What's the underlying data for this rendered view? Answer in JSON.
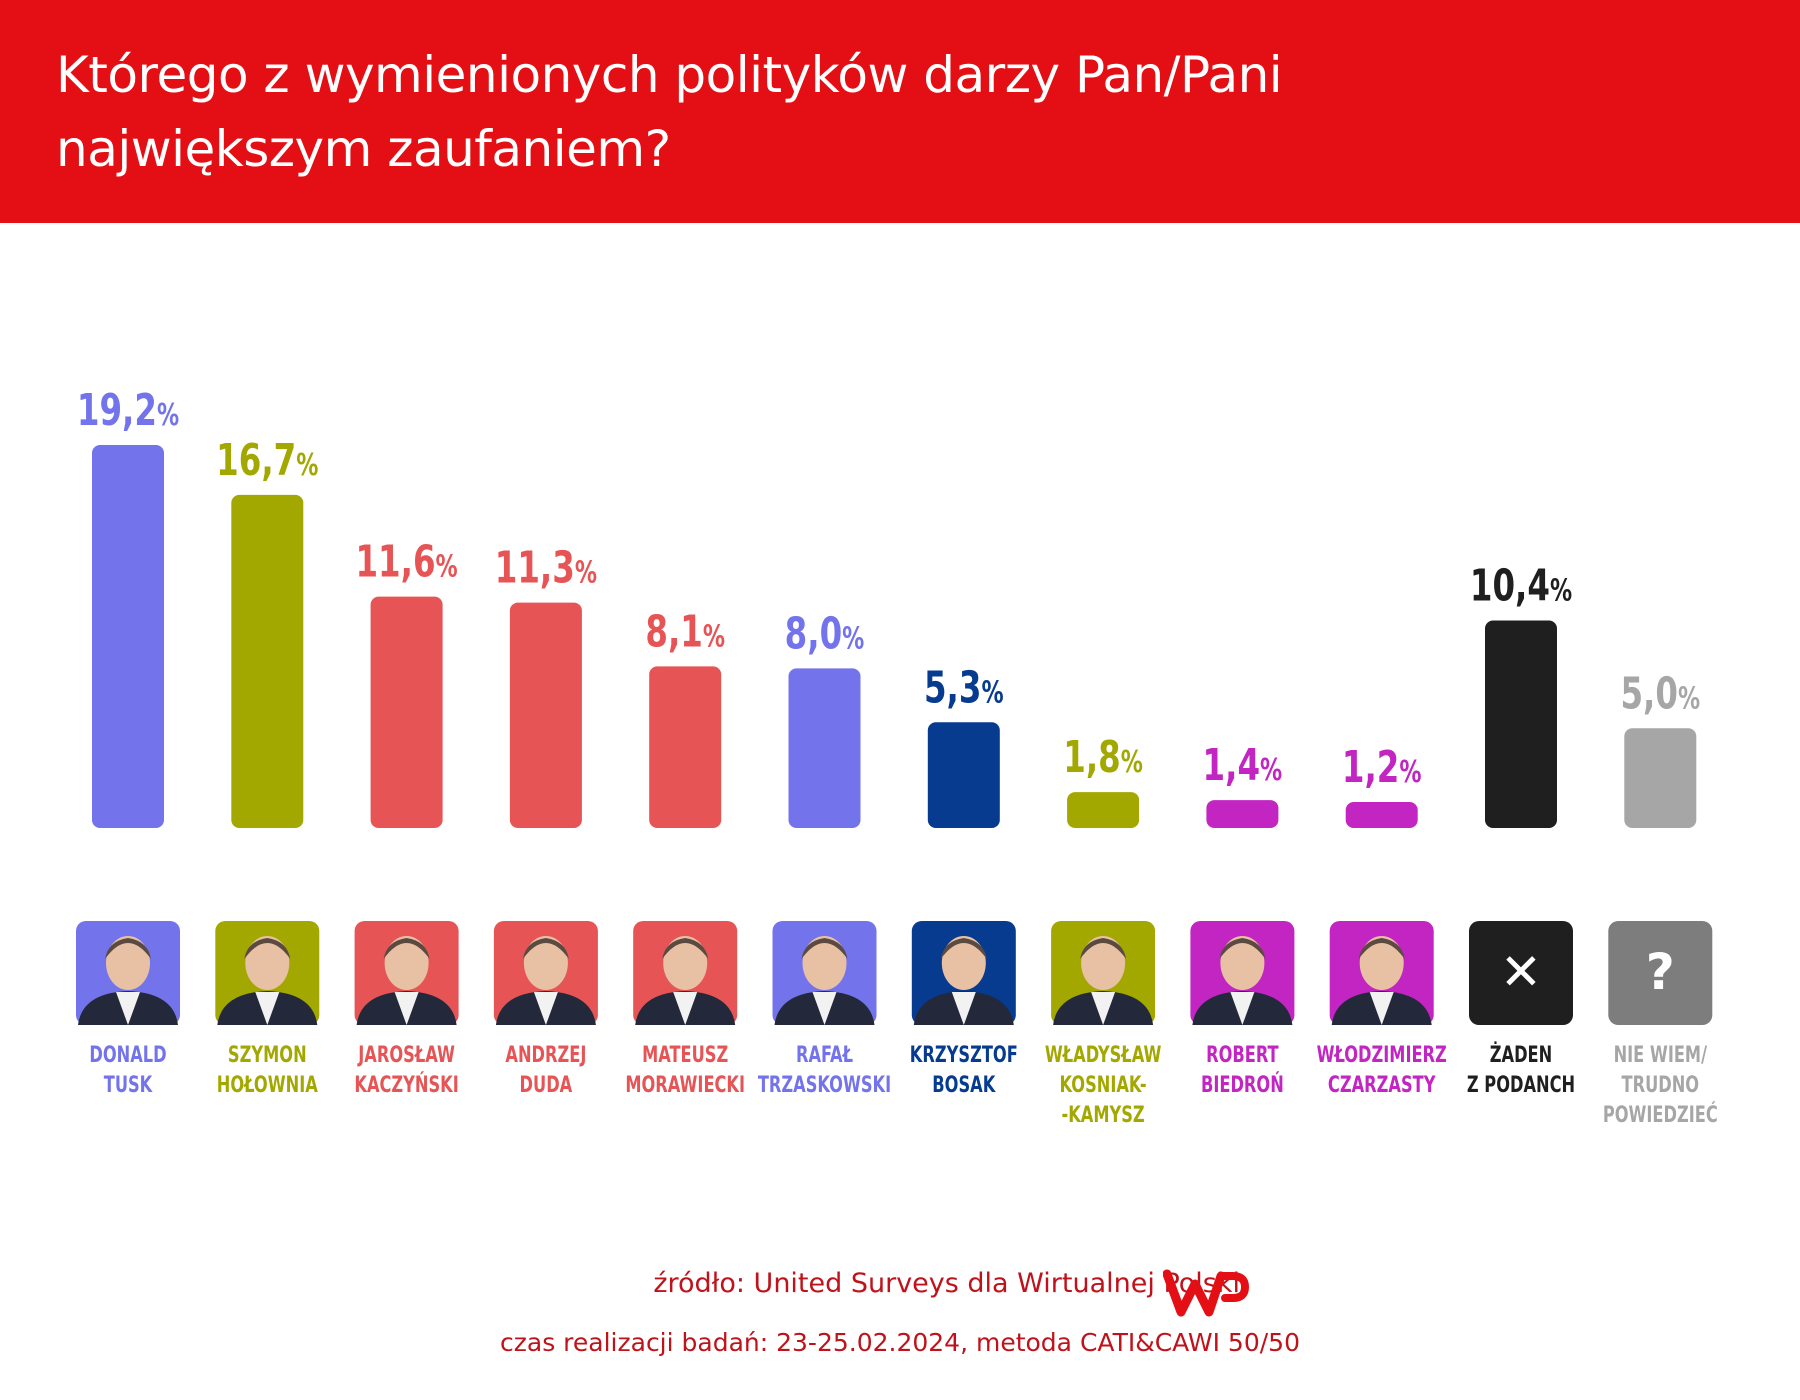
{
  "header": {
    "title": "Którego z wymienionych polityków darzy Pan/Pani największym zaufaniem?"
  },
  "chart_data": {
    "type": "bar",
    "title": "Którego z wymienionych polityków darzy Pan/Pani największym zaufaniem?",
    "xlabel": "",
    "ylabel": "",
    "ylim": [
      0,
      20
    ],
    "grid": false,
    "legend": "none",
    "unit": "%",
    "categories": [
      [
        "DONALD",
        "TUSK"
      ],
      [
        "SZYMON",
        "HOŁOWNIA"
      ],
      [
        "JAROSŁAW",
        "KACZYŃSKI"
      ],
      [
        "ANDRZEJ",
        "DUDA"
      ],
      [
        "MATEUSZ",
        "MORAWIECKI"
      ],
      [
        "RAFAŁ",
        "TRZASKOWSKI"
      ],
      [
        "KRZYSZTOF",
        "BOSAK"
      ],
      [
        "WŁADYSŁAW",
        "KOSNIAK-",
        "-KAMYSZ"
      ],
      [
        "ROBERT",
        "BIEDROŃ"
      ],
      [
        "WŁODZIMIERZ",
        "CZARZASTY"
      ],
      [
        "ŻADEN",
        "Z PODANCH"
      ],
      [
        "NIE WIEM/",
        "TRUDNO",
        "POWIEDZIEĆ"
      ]
    ],
    "values": [
      19.2,
      16.7,
      11.6,
      11.3,
      8.1,
      8.0,
      5.3,
      1.8,
      1.4,
      1.2,
      10.4,
      5.0
    ],
    "value_labels": [
      "19,2",
      "16,7",
      "11,6",
      "11,3",
      "8,1",
      "8,0",
      "5,3",
      "1,8",
      "1,4",
      "1,2",
      "10,4",
      "5,0"
    ],
    "colors": [
      "#7373ec",
      "#a3a800",
      "#e65455",
      "#e65455",
      "#e65455",
      "#7373ec",
      "#063b8f",
      "#a3a800",
      "#c225c2",
      "#c225c2",
      "#1f1f1f",
      "#a6a6a6"
    ],
    "icons": [
      "portrait",
      "portrait",
      "portrait",
      "portrait",
      "portrait",
      "portrait",
      "portrait",
      "portrait",
      "portrait",
      "portrait",
      "cross-icon",
      "question-icon"
    ],
    "icon_glyphs": [
      "",
      "",
      "",
      "",
      "",
      "",
      "",
      "",
      "",
      "",
      "✕",
      "?"
    ]
  },
  "footer": {
    "source": "źródło: United Surveys dla Wirtualnej Polski",
    "meta": "czas realizacji badań: 23-25.02.2024, metoda CATI&CAWI 50/50",
    "logo": "WP"
  }
}
